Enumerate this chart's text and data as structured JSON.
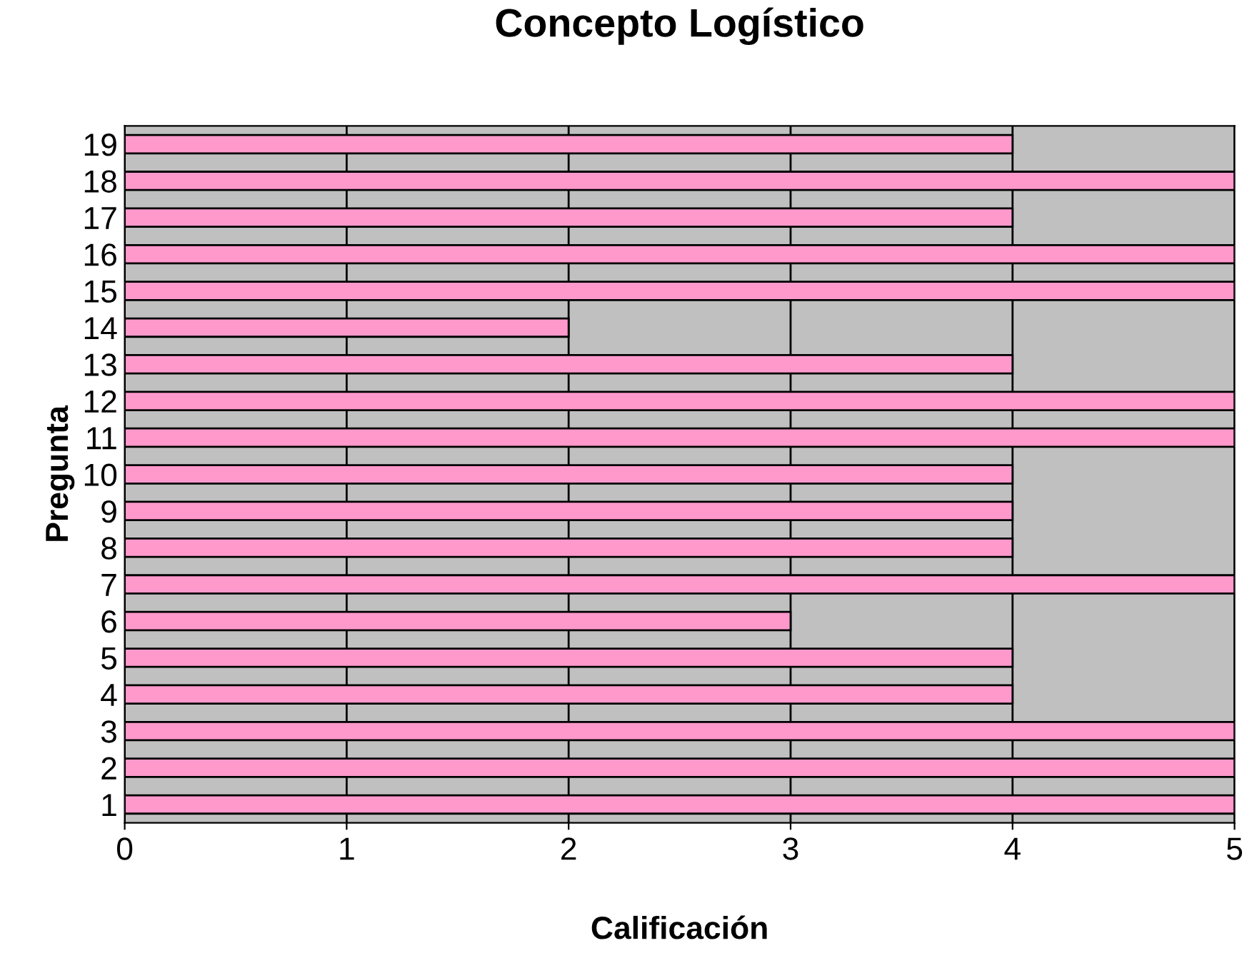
{
  "chart_data": {
    "type": "bar",
    "orientation": "horizontal",
    "title": "Concepto Logístico",
    "xlabel": "Calificación",
    "ylabel": "Pregunta",
    "categories": [
      "19",
      "18",
      "17",
      "16",
      "15",
      "14",
      "13",
      "12",
      "11",
      "10",
      "9",
      "8",
      "7",
      "6",
      "5",
      "4",
      "3",
      "2",
      "1"
    ],
    "values": [
      4,
      5,
      4,
      5,
      5,
      2,
      4,
      5,
      5,
      4,
      4,
      4,
      5,
      3,
      4,
      4,
      5,
      5,
      5
    ],
    "color": "#ff99cc",
    "xlim": [
      0,
      5
    ],
    "xticks": [
      0,
      1,
      2,
      3,
      4,
      5
    ],
    "grid": "x",
    "legend": false
  }
}
